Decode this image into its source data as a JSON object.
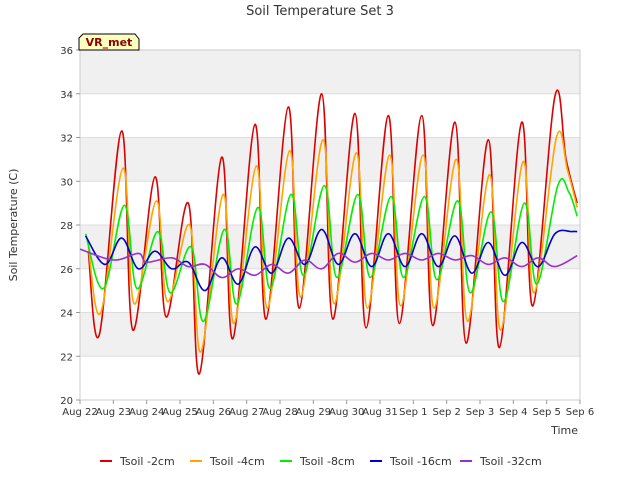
{
  "chart_data": {
    "type": "line",
    "title": "Soil Temperature Set 3",
    "xlabel": "Time",
    "ylabel": "Soil Temperature (C)",
    "site_badge": "VR_met",
    "ylim": [
      20,
      36
    ],
    "yticks": [
      20,
      22,
      24,
      26,
      28,
      30,
      32,
      34,
      36
    ],
    "xlim": [
      "2023-08-22",
      "2023-09-06"
    ],
    "xticks": [
      "2023-08-22",
      "2023-08-23",
      "2023-08-24",
      "2023-08-25",
      "2023-08-26",
      "2023-08-27",
      "2023-08-28",
      "2023-08-29",
      "2023-08-30",
      "2023-08-31",
      "2023-09-01",
      "2023-09-02",
      "2023-09-03",
      "2023-09-04",
      "2023-09-05",
      "2023-09-06"
    ],
    "xtick_labels": [
      "Aug 22",
      "Aug 23",
      "Aug 24",
      "Aug 25",
      "Aug 26",
      "Aug 27",
      "Aug 28",
      "Aug 29",
      "Aug 30",
      "Aug 31",
      "Sep 1",
      "Sep 2",
      "Sep 3",
      "Sep 4",
      "Sep 5",
      "Sep 6"
    ],
    "grid": true,
    "legend_position": "bottom",
    "series": [
      {
        "name": "Tsoil -2cm",
        "color": "#dd0000",
        "x": [
          "2023-08-22 06:00",
          "2023-08-22 14:00",
          "2023-08-23 06:00",
          "2023-08-23 14:00",
          "2023-08-24 06:00",
          "2023-08-24 14:00",
          "2023-08-25 06:00",
          "2023-08-25 14:00",
          "2023-08-26 06:00",
          "2023-08-26 14:00",
          "2023-08-27 06:00",
          "2023-08-27 14:00",
          "2023-08-28 06:00",
          "2023-08-28 14:00",
          "2023-08-29 06:00",
          "2023-08-29 14:00",
          "2023-08-30 06:00",
          "2023-08-30 14:00",
          "2023-08-31 06:00",
          "2023-08-31 14:00",
          "2023-09-01 06:00",
          "2023-09-01 14:00",
          "2023-09-02 06:00",
          "2023-09-02 14:00",
          "2023-09-03 06:00",
          "2023-09-03 14:00",
          "2023-09-04 06:00",
          "2023-09-04 14:00",
          "2023-09-05 06:00",
          "2023-09-05 14:00",
          "2023-09-05 22:00"
        ],
        "y": [
          26.8,
          23.0,
          32.3,
          23.2,
          30.2,
          23.8,
          29.0,
          21.2,
          31.1,
          22.8,
          32.6,
          23.7,
          33.4,
          24.2,
          34.0,
          23.7,
          33.1,
          23.3,
          33.0,
          23.5,
          33.0,
          23.4,
          32.7,
          22.6,
          31.9,
          22.4,
          32.7,
          24.3,
          33.9,
          31.0,
          29.0
        ]
      },
      {
        "name": "Tsoil -4cm",
        "color": "#ffa500",
        "x": [
          "2023-08-22 06:00",
          "2023-08-22 15:00",
          "2023-08-23 07:00",
          "2023-08-23 15:00",
          "2023-08-24 07:00",
          "2023-08-24 15:00",
          "2023-08-25 07:00",
          "2023-08-25 15:00",
          "2023-08-26 07:00",
          "2023-08-26 15:00",
          "2023-08-27 07:00",
          "2023-08-27 15:00",
          "2023-08-28 07:00",
          "2023-08-28 15:00",
          "2023-08-29 07:00",
          "2023-08-29 15:00",
          "2023-08-30 07:00",
          "2023-08-30 15:00",
          "2023-08-31 07:00",
          "2023-08-31 15:00",
          "2023-09-01 07:00",
          "2023-09-01 15:00",
          "2023-09-02 07:00",
          "2023-09-02 15:00",
          "2023-09-03 07:00",
          "2023-09-03 15:00",
          "2023-09-04 07:00",
          "2023-09-04 15:00",
          "2023-09-05 07:00",
          "2023-09-05 15:00",
          "2023-09-05 22:00"
        ],
        "y": [
          27.0,
          24.0,
          30.6,
          24.4,
          29.1,
          24.5,
          28.0,
          22.2,
          29.4,
          23.5,
          30.7,
          24.2,
          31.4,
          24.7,
          31.9,
          24.4,
          31.3,
          24.2,
          31.2,
          24.3,
          31.2,
          24.2,
          31.0,
          23.6,
          30.3,
          23.2,
          30.9,
          24.9,
          32.0,
          30.5,
          28.8
        ]
      },
      {
        "name": "Tsoil -8cm",
        "color": "#00ee00",
        "x": [
          "2023-08-22 04:00",
          "2023-08-22 17:00",
          "2023-08-23 08:00",
          "2023-08-23 17:00",
          "2023-08-24 08:00",
          "2023-08-24 17:00",
          "2023-08-25 08:00",
          "2023-08-25 17:00",
          "2023-08-26 08:00",
          "2023-08-26 17:00",
          "2023-08-27 08:00",
          "2023-08-27 17:00",
          "2023-08-28 08:00",
          "2023-08-28 17:00",
          "2023-08-29 08:00",
          "2023-08-29 17:00",
          "2023-08-30 08:00",
          "2023-08-30 17:00",
          "2023-08-31 08:00",
          "2023-08-31 17:00",
          "2023-09-01 08:00",
          "2023-09-01 17:00",
          "2023-09-02 08:00",
          "2023-09-02 17:00",
          "2023-09-03 08:00",
          "2023-09-03 17:00",
          "2023-09-04 08:00",
          "2023-09-04 17:00",
          "2023-09-05 08:00",
          "2023-09-05 16:00",
          "2023-09-05 22:00"
        ],
        "y": [
          27.6,
          25.1,
          28.9,
          25.1,
          27.7,
          24.9,
          27.0,
          23.6,
          27.8,
          24.4,
          28.8,
          25.1,
          29.4,
          25.7,
          29.8,
          25.6,
          29.4,
          25.6,
          29.3,
          25.6,
          29.3,
          25.5,
          29.1,
          24.9,
          28.6,
          24.5,
          29.0,
          25.3,
          29.8,
          29.5,
          28.4
        ]
      },
      {
        "name": "Tsoil -16cm",
        "color": "#0000cc",
        "x": [
          "2023-08-22 04:00",
          "2023-08-22 18:00",
          "2023-08-23 06:00",
          "2023-08-23 18:00",
          "2023-08-24 06:00",
          "2023-08-24 18:00",
          "2023-08-25 06:00",
          "2023-08-25 18:00",
          "2023-08-26 06:00",
          "2023-08-26 18:00",
          "2023-08-27 06:00",
          "2023-08-27 18:00",
          "2023-08-28 06:00",
          "2023-08-28 18:00",
          "2023-08-29 06:00",
          "2023-08-29 18:00",
          "2023-08-30 06:00",
          "2023-08-30 18:00",
          "2023-08-31 06:00",
          "2023-08-31 18:00",
          "2023-09-01 06:00",
          "2023-09-01 18:00",
          "2023-09-02 06:00",
          "2023-09-02 18:00",
          "2023-09-03 06:00",
          "2023-09-03 18:00",
          "2023-09-04 06:00",
          "2023-09-04 18:00",
          "2023-09-05 06:00",
          "2023-09-05 18:00",
          "2023-09-05 22:00"
        ],
        "y": [
          27.5,
          26.2,
          27.4,
          26.0,
          26.8,
          26.0,
          26.3,
          25.0,
          26.5,
          25.3,
          27.0,
          25.8,
          27.4,
          26.2,
          27.8,
          26.2,
          27.6,
          26.1,
          27.6,
          26.1,
          27.6,
          26.1,
          27.5,
          25.8,
          27.2,
          25.7,
          27.2,
          26.1,
          27.6,
          27.7,
          27.7
        ]
      },
      {
        "name": "Tsoil -32cm",
        "color": "#9932cc",
        "x": [
          "2023-08-22 00:00",
          "2023-08-23 00:00",
          "2023-08-23 18:00",
          "2023-08-24 00:00",
          "2023-08-24 18:00",
          "2023-08-25 06:00",
          "2023-08-25 18:00",
          "2023-08-26 06:00",
          "2023-08-26 18:00",
          "2023-08-27 06:00",
          "2023-08-27 18:00",
          "2023-08-28 06:00",
          "2023-08-28 18:00",
          "2023-08-29 06:00",
          "2023-08-29 18:00",
          "2023-08-30 06:00",
          "2023-08-30 18:00",
          "2023-08-31 06:00",
          "2023-08-31 18:00",
          "2023-09-01 06:00",
          "2023-09-01 18:00",
          "2023-09-02 06:00",
          "2023-09-02 18:00",
          "2023-09-03 06:00",
          "2023-09-03 18:00",
          "2023-09-04 06:00",
          "2023-09-04 18:00",
          "2023-09-05 06:00",
          "2023-09-05 22:00"
        ],
        "y": [
          26.9,
          26.4,
          26.7,
          26.3,
          26.5,
          26.1,
          26.2,
          25.6,
          26.0,
          25.7,
          26.2,
          25.8,
          26.4,
          26.0,
          26.7,
          26.3,
          26.7,
          26.4,
          26.7,
          26.4,
          26.7,
          26.4,
          26.6,
          26.2,
          26.5,
          26.1,
          26.5,
          26.1,
          26.6
        ]
      }
    ]
  }
}
